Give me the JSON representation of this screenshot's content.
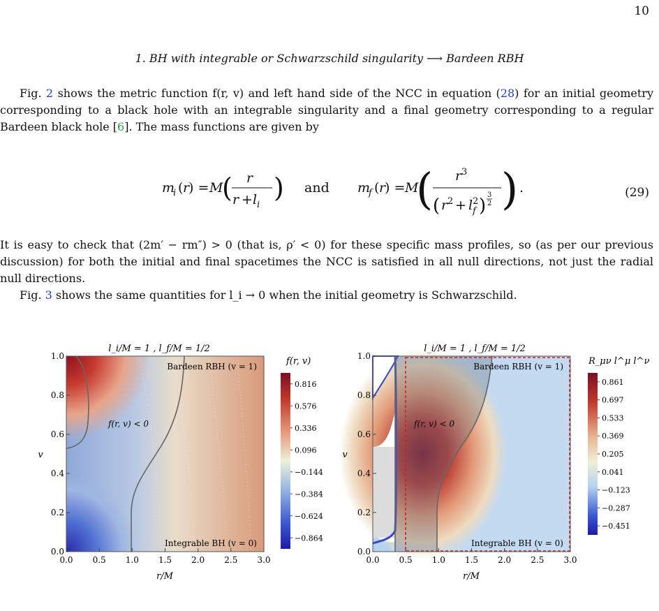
{
  "page_number": "10",
  "section_heading": "1.   BH with integrable or Schwarzschild singularity ⟶ Bardeen RBH",
  "para1": {
    "pre": "Fig. ",
    "fig2": "2",
    "mid1": " shows the metric function f(r, v) and left hand side of the NCC in equation (",
    "eq28": "28",
    "mid2": ") for an initial geometry corresponding to a black hole with an integrable singularity and a final geometry corresponding to a regular Bardeen black hole [",
    "ref6": "6",
    "post": "]. The mass functions are given by"
  },
  "equation": {
    "lhs1": "m_i(r) = M(r / (r + l_i))",
    "and": "and",
    "lhs2": "m_f(r) = M(r³ / (r² + l_f²)^(3/2))",
    "number": "(29)"
  },
  "para2": "It is easy to check that (2m′ − rm″) > 0 (that is, ρ′ < 0) for these specific mass profiles, so (as per our previous discussion) for both the initial and final spacetimes the NCC is satisfied in all null directions, not just the radial null directions.",
  "para3": {
    "pre": "Fig. ",
    "fig3": "3",
    "post": " shows the same quantities for l_i → 0 when the initial geometry is Schwarzschild."
  },
  "figures": {
    "left": {
      "title": "l_i/M = 1 ,  l_f/M = 1/2",
      "xlabel": "r/M",
      "ylabel": "v",
      "top_label": "Bardeen RBH  (v = 1)",
      "bottom_label": "Integrable BH  (v = 0)",
      "region_label": "f(r, v) < 0",
      "legend_title": "f(r, v)",
      "legend_ticks": [
        "0.816",
        "0.576",
        "0.336",
        "0.096",
        "−0.144",
        "−0.384",
        "−0.624",
        "−0.864"
      ]
    },
    "right": {
      "title": "l_i/M = 1 ,  l_f/M = 1/2",
      "xlabel": "r/M",
      "ylabel": "v",
      "top_label": "Bardeen RBH  (v = 1)",
      "bottom_label": "Integrable BH  (v = 0)",
      "region_label": "f(r, v) < 0",
      "legend_title": "R_μν l^μ l^ν",
      "legend_ticks": [
        "0.861",
        "0.697",
        "0.533",
        "0.369",
        "0.205",
        "0.041",
        "−0.123",
        "−0.287",
        "−0.451"
      ]
    }
  },
  "chart_data": [
    {
      "type": "heatmap",
      "title": "l_i/M = 1 ,  l_f/M = 1/2",
      "xlabel": "r/M",
      "ylabel": "v",
      "xlim": [
        0,
        3
      ],
      "ylim": [
        0,
        1
      ],
      "x_ticks": [
        "0.0",
        "0.5",
        "1.0",
        "1.5",
        "2.0",
        "2.5",
        "3.0"
      ],
      "y_ticks": [
        "0.0",
        "0.2",
        "0.4",
        "0.6",
        "0.8",
        "1.0"
      ],
      "colorbar_label": "f(r, v)",
      "colorbar_ticks": [
        0.816,
        0.576,
        0.336,
        0.096,
        -0.144,
        -0.384,
        -0.624,
        -0.864
      ],
      "horizon_curves": [
        {
          "x": [
            0.15,
            0.3,
            0.28,
            0.15,
            0.0
          ],
          "y": [
            1.0,
            0.9,
            0.7,
            0.5,
            0.5
          ]
        },
        {
          "x": [
            1.8,
            1.75,
            1.5,
            1.1,
            1.0,
            1.0
          ],
          "y": [
            1.0,
            0.8,
            0.6,
            0.4,
            0.2,
            0.0
          ]
        }
      ],
      "annotations": [
        "Bardeen RBH  (v = 1)",
        "Integrable BH  (v = 0)",
        "f(r, v) < 0"
      ]
    },
    {
      "type": "heatmap",
      "title": "l_i/M = 1 ,  l_f/M = 1/2",
      "xlabel": "r/M",
      "ylabel": "v",
      "xlim": [
        0,
        3
      ],
      "ylim": [
        0,
        1
      ],
      "x_ticks": [
        "0.0",
        "0.5",
        "1.0",
        "1.5",
        "2.0",
        "2.5",
        "3.0"
      ],
      "y_ticks": [
        "0.0",
        "0.2",
        "0.4",
        "0.6",
        "0.8",
        "1.0"
      ],
      "colorbar_label": "R_μν l^μ l^ν",
      "colorbar_ticks": [
        0.861,
        0.697,
        0.533,
        0.369,
        0.205,
        0.041,
        -0.123,
        -0.287,
        -0.451
      ],
      "dashed_box": {
        "x": [
          0.5,
          3.0
        ],
        "y": [
          0.0,
          1.0
        ]
      },
      "annotations": [
        "Bardeen RBH  (v = 1)",
        "Integrable BH  (v = 0)",
        "f(r, v) < 0"
      ]
    }
  ]
}
